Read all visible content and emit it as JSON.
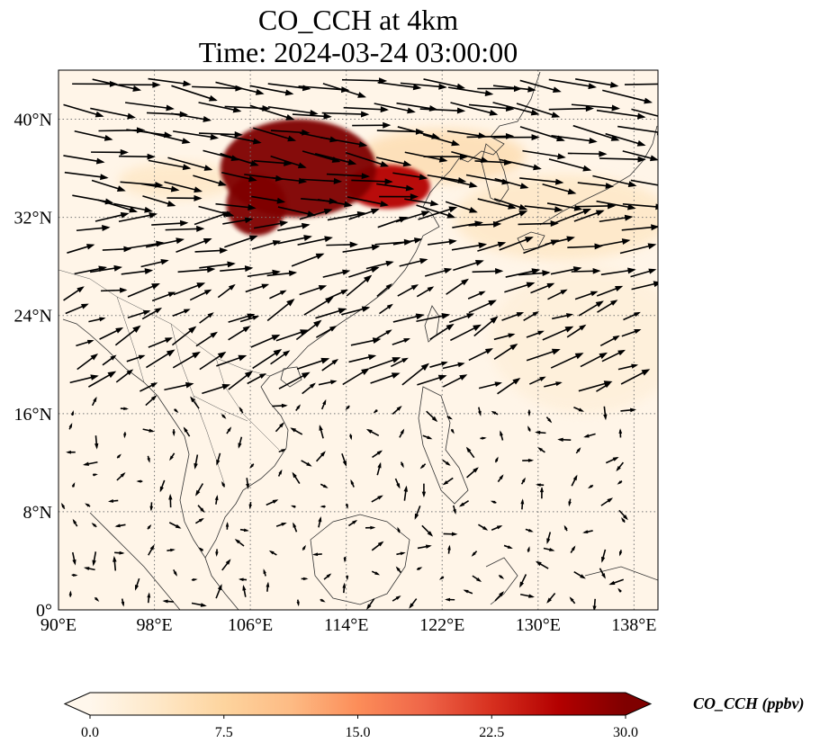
{
  "title": {
    "line1": "CO_CCH at 4km",
    "line2": "Time: 2024-03-24 03:00:00"
  },
  "map": {
    "projection": "PlateCarree",
    "lon_range": [
      90,
      140
    ],
    "lat_range": [
      0,
      44
    ],
    "gridlines": "dotted",
    "lon_ticks": [
      90,
      98,
      106,
      114,
      122,
      130,
      138
    ],
    "lon_tick_labels": [
      "90°E",
      "98°E",
      "106°E",
      "114°E",
      "122°E",
      "130°E",
      "138°E"
    ],
    "lat_ticks": [
      0,
      8,
      16,
      24,
      32,
      40
    ],
    "lat_tick_labels": [
      "0°",
      "8°N",
      "16°N",
      "24°N",
      "32°N",
      "40°N"
    ],
    "field": {
      "variable": "CO_CCH",
      "plumes": [
        {
          "lon_center": 110.0,
          "lat_center": 36.0,
          "lon_radius": 6.5,
          "lat_radius": 4.0,
          "value": 30
        },
        {
          "lon_center": 106.5,
          "lat_center": 33.0,
          "lon_radius": 2.5,
          "lat_radius": 2.5,
          "value": 30
        },
        {
          "lon_center": 117.5,
          "lat_center": 34.5,
          "lon_radius": 3.5,
          "lat_radius": 1.8,
          "value": 26
        },
        {
          "lon_center": 122.0,
          "lat_center": 37.0,
          "lon_radius": 7.0,
          "lat_radius": 2.2,
          "value": 6
        },
        {
          "lon_center": 132.0,
          "lat_center": 32.0,
          "lon_radius": 9.0,
          "lat_radius": 3.5,
          "value": 4
        },
        {
          "lon_center": 134.0,
          "lat_center": 22.0,
          "lon_radius": 8.0,
          "lat_radius": 6.0,
          "value": 2
        },
        {
          "lon_center": 100.0,
          "lat_center": 35.0,
          "lon_radius": 5.0,
          "lat_radius": 1.5,
          "value": 4
        }
      ]
    },
    "wind_vectors": "quiver arrows, westerly flow in the north, weak variable winds in the south"
  },
  "colorbar": {
    "label": "CO_CCH (ppbv)",
    "cmap": "OrRd",
    "min": 0.0,
    "max": 30.0,
    "ticks": [
      0,
      7.5,
      15,
      22.5,
      30
    ],
    "tick_labels": [
      "0.0",
      "7.5",
      "15.0",
      "22.5",
      "30.0"
    ],
    "extend": "both",
    "colors": [
      "#fff7ec",
      "#fee8c8",
      "#fdd49e",
      "#fdbb84",
      "#fc8d59",
      "#ef6548",
      "#d7301f",
      "#b30000",
      "#7f0000"
    ]
  }
}
